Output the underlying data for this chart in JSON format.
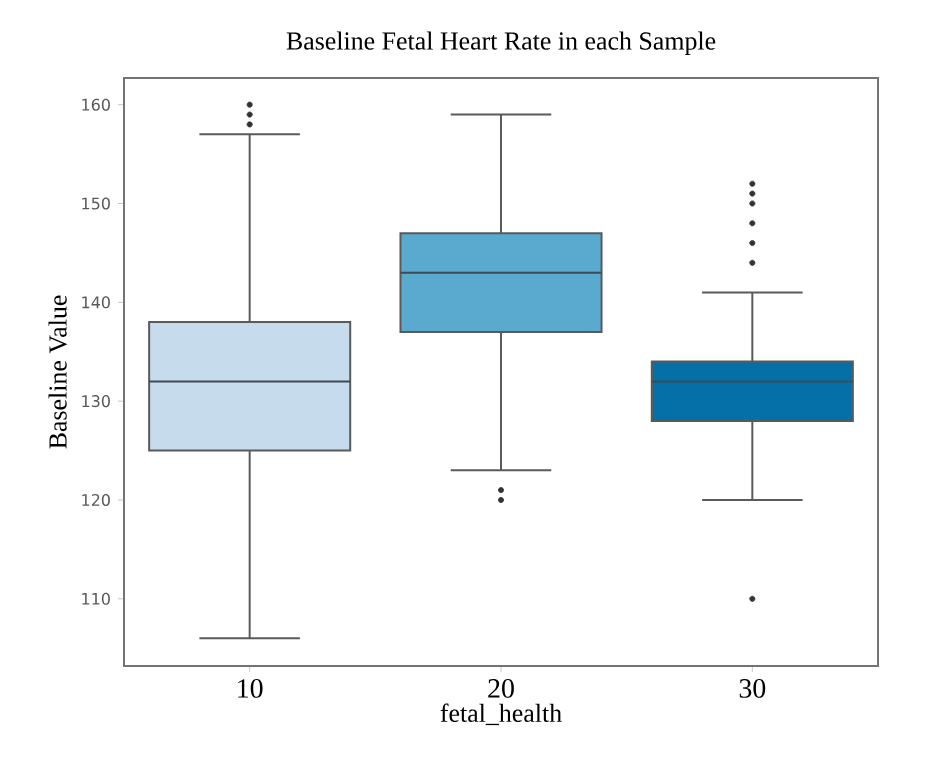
{
  "chart_data": {
    "type": "box",
    "title": "Baseline Fetal Heart Rate in each Sample",
    "xlabel": "fetal_health",
    "ylabel": "Baseline Value",
    "categories": [
      "10",
      "20",
      "30"
    ],
    "colors": [
      "#c6dbec",
      "#5aa9cf",
      "#0570a8"
    ],
    "boxes": [
      {
        "low": 106,
        "q1": 125,
        "median": 132,
        "q3": 138,
        "high": 157,
        "outliers": [
          158,
          159,
          160
        ]
      },
      {
        "low": 123,
        "q1": 137,
        "median": 143,
        "q3": 147,
        "high": 159,
        "outliers": [
          120,
          121
        ]
      },
      {
        "low": 120,
        "q1": 128,
        "median": 132,
        "q3": 134,
        "high": 141,
        "outliers": [
          110,
          144,
          146,
          148,
          150,
          151,
          152
        ]
      }
    ],
    "ylim": [
      103.2,
      162.7
    ],
    "yticks": [
      110,
      120,
      130,
      140,
      150,
      160
    ]
  }
}
